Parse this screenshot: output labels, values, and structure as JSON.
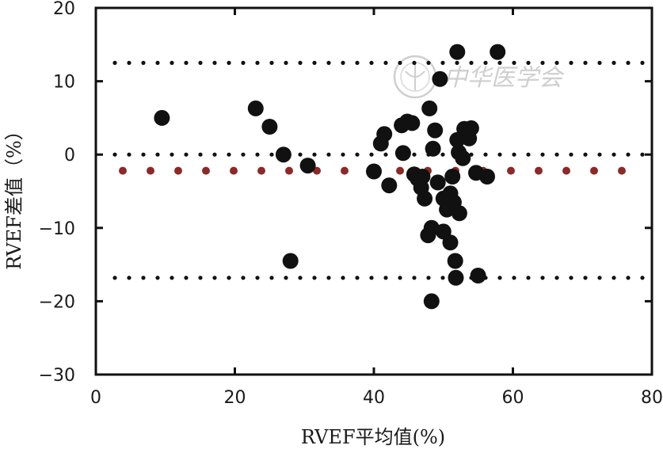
{
  "chart_data": {
    "type": "scatter",
    "title": "",
    "xlabel": "RVEF平均值(%)",
    "ylabel": "RVEF差值（%）",
    "xlim": [
      0,
      80
    ],
    "ylim": [
      -30,
      20
    ],
    "xticks": [
      0,
      20,
      40,
      60,
      80
    ],
    "yticks": [
      20,
      10,
      0,
      -10,
      -20,
      -30
    ],
    "xtick_labels": [
      "0",
      "20",
      "40",
      "60",
      "80"
    ],
    "ytick_labels": [
      "20",
      "10",
      "0",
      "−10",
      "−20",
      "−30"
    ],
    "grid": false,
    "legend": "none",
    "reference_lines": [
      {
        "y": 12.5,
        "style": "dotted",
        "color": "#111111"
      },
      {
        "y": 0,
        "style": "dotted",
        "color": "#111111"
      },
      {
        "y": -2.2,
        "style": "dotted",
        "color": "#8b2a2a"
      },
      {
        "y": -16.8,
        "style": "dotted",
        "color": "#111111"
      }
    ],
    "points": [
      {
        "x": 9.5,
        "y": 5.0
      },
      {
        "x": 23.0,
        "y": 6.3
      },
      {
        "x": 25.0,
        "y": 3.8
      },
      {
        "x": 27.0,
        "y": 0.0
      },
      {
        "x": 28.0,
        "y": -14.5
      },
      {
        "x": 30.5,
        "y": -1.5
      },
      {
        "x": 40.0,
        "y": -2.3
      },
      {
        "x": 41.0,
        "y": 1.5
      },
      {
        "x": 41.5,
        "y": 2.8
      },
      {
        "x": 42.2,
        "y": -4.2
      },
      {
        "x": 44.0,
        "y": 4.0
      },
      {
        "x": 44.2,
        "y": 0.2
      },
      {
        "x": 44.8,
        "y": 4.5
      },
      {
        "x": 45.5,
        "y": 4.3
      },
      {
        "x": 45.8,
        "y": -2.7
      },
      {
        "x": 46.3,
        "y": -3.3
      },
      {
        "x": 46.8,
        "y": -4.5
      },
      {
        "x": 47.0,
        "y": -3.0
      },
      {
        "x": 47.3,
        "y": -6.0
      },
      {
        "x": 47.8,
        "y": -11.0
      },
      {
        "x": 48.0,
        "y": 6.3
      },
      {
        "x": 48.3,
        "y": -10.0
      },
      {
        "x": 48.3,
        "y": -20.0
      },
      {
        "x": 48.5,
        "y": 0.8
      },
      {
        "x": 48.8,
        "y": 3.3
      },
      {
        "x": 49.2,
        "y": -3.8
      },
      {
        "x": 49.5,
        "y": 10.3
      },
      {
        "x": 50.0,
        "y": -6.0
      },
      {
        "x": 50.0,
        "y": -10.5
      },
      {
        "x": 50.5,
        "y": -7.5
      },
      {
        "x": 51.0,
        "y": -5.3
      },
      {
        "x": 51.0,
        "y": -12.0
      },
      {
        "x": 51.3,
        "y": -3.0
      },
      {
        "x": 51.5,
        "y": -6.5
      },
      {
        "x": 51.7,
        "y": -14.5
      },
      {
        "x": 51.8,
        "y": -16.8
      },
      {
        "x": 52.0,
        "y": 2.0
      },
      {
        "x": 52.0,
        "y": 14.0
      },
      {
        "x": 52.2,
        "y": 0.3
      },
      {
        "x": 52.3,
        "y": -8.0
      },
      {
        "x": 52.8,
        "y": -0.5
      },
      {
        "x": 53.0,
        "y": 3.5
      },
      {
        "x": 53.7,
        "y": 2.2
      },
      {
        "x": 54.0,
        "y": 3.6
      },
      {
        "x": 54.7,
        "y": -2.5
      },
      {
        "x": 55.0,
        "y": -16.5
      },
      {
        "x": 56.3,
        "y": -3.0
      },
      {
        "x": 57.8,
        "y": 14.0
      }
    ],
    "colors": {
      "points": "#111111",
      "axes": "#111111",
      "mean_line": "#8b2a2a",
      "watermark": "#cfcfcf"
    }
  },
  "watermark": {
    "text": "中华医学会",
    "icon": "seal-emblem-icon"
  }
}
